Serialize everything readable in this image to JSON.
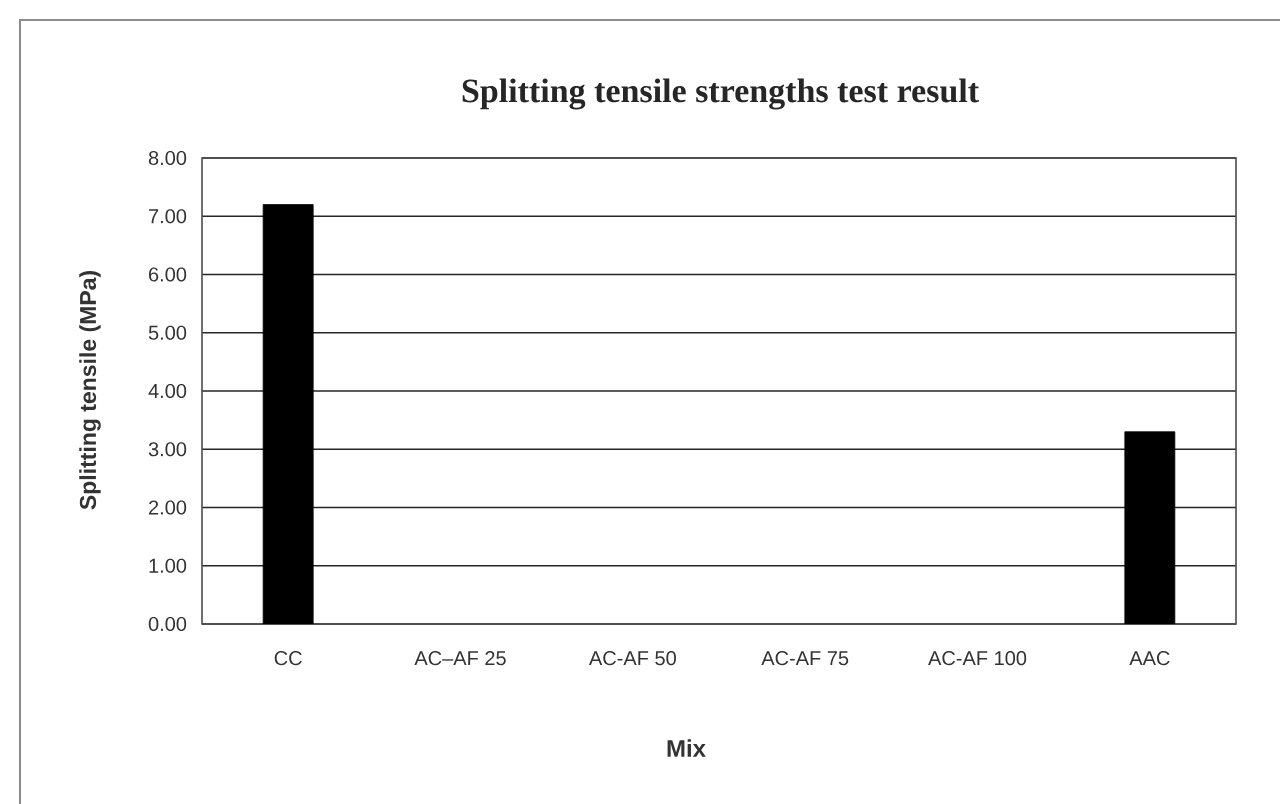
{
  "chart_data": {
    "type": "bar",
    "title": "Splitting tensile strengths test result",
    "xlabel": "Mix",
    "ylabel": "Splitting tensile (MPa)",
    "categories": [
      "CC",
      "AC–AF 25",
      "AC-AF 50",
      "AC-AF 75",
      "AC-AF 100",
      "AAC"
    ],
    "values": [
      7.2,
      null,
      null,
      null,
      null,
      3.3
    ],
    "color": "#000000",
    "ylim": [
      0,
      8
    ],
    "yticks": [
      {
        "value": 0,
        "label": "0.00"
      },
      {
        "value": 1,
        "label": "1.00"
      },
      {
        "value": 2,
        "label": "2.00"
      },
      {
        "value": 3,
        "label": "3.00"
      },
      {
        "value": 4,
        "label": "4.00"
      },
      {
        "value": 5,
        "label": "5.00"
      },
      {
        "value": 6,
        "label": "6.00"
      },
      {
        "value": 7,
        "label": "7.00"
      },
      {
        "value": 8,
        "label": "8.00"
      }
    ],
    "grid": "y"
  }
}
